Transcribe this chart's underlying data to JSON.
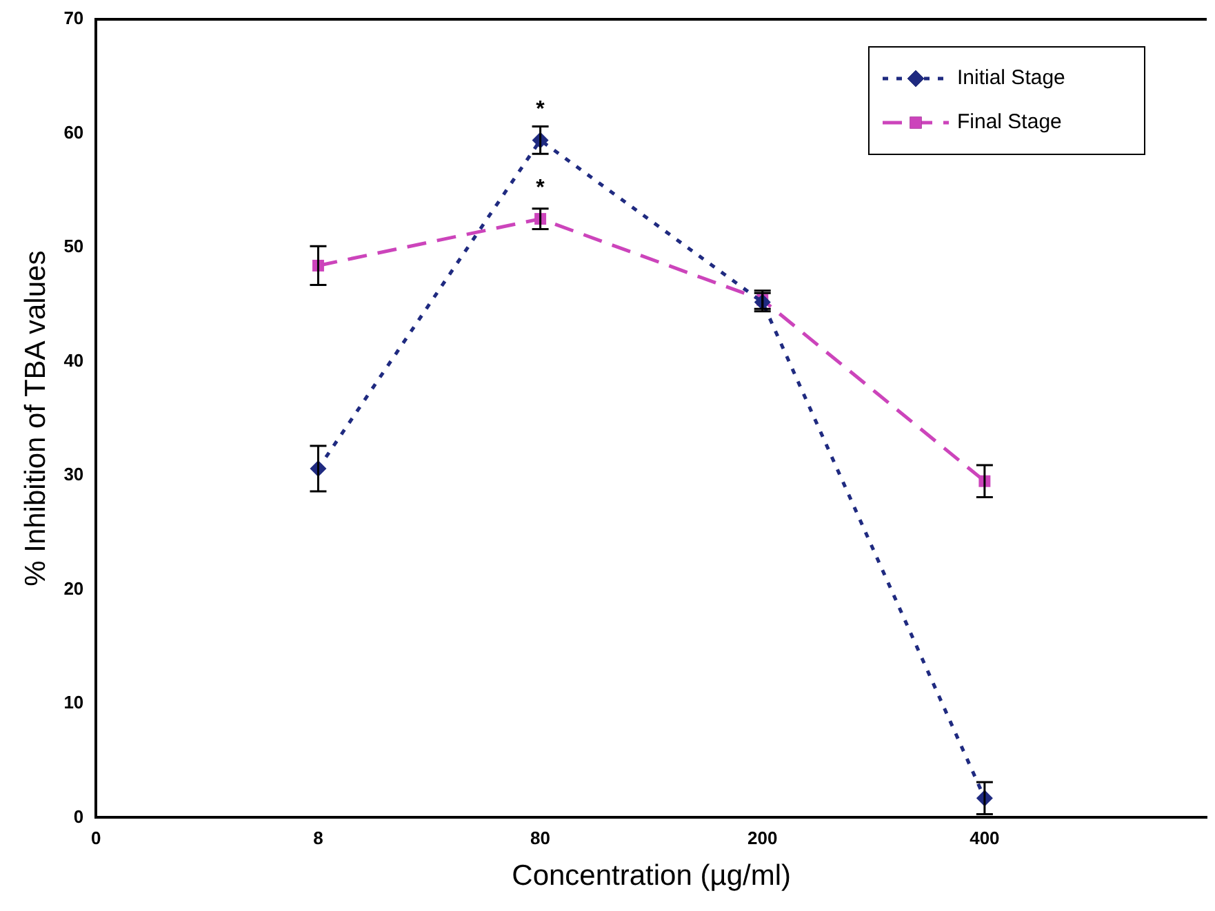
{
  "chart_data": {
    "type": "line",
    "xlabel": "Concentration (µg/ml)",
    "ylabel": "% Inhibition of TBA values",
    "categories": [
      "0",
      "8",
      "80",
      "200",
      "400",
      null
    ],
    "series": [
      {
        "name": "Initial Stage",
        "color": "#1f2a80",
        "values": [
          null,
          30.6,
          59.4,
          45.2,
          1.7,
          null
        ],
        "errors": [
          null,
          2,
          1.2,
          0.8,
          1.4,
          null
        ],
        "marker": "diamond",
        "line_style": "dotted"
      },
      {
        "name": "Final Stage",
        "color": "#cc44bb",
        "values": [
          null,
          48.4,
          52.5,
          45.4,
          29.5,
          null
        ],
        "errors": [
          null,
          1.7,
          0.9,
          0.8,
          1.4,
          null
        ],
        "marker": "square",
        "line_style": "dashed"
      }
    ],
    "ylim": [
      0,
      70
    ],
    "yticks": [
      0,
      10,
      20,
      30,
      40,
      50,
      60,
      70
    ],
    "grid": false,
    "legend": "top right",
    "annotations": [
      {
        "text": "*",
        "x": "80",
        "y": 59.4
      },
      {
        "text": "*",
        "x": "80",
        "y": 52.5
      }
    ]
  }
}
